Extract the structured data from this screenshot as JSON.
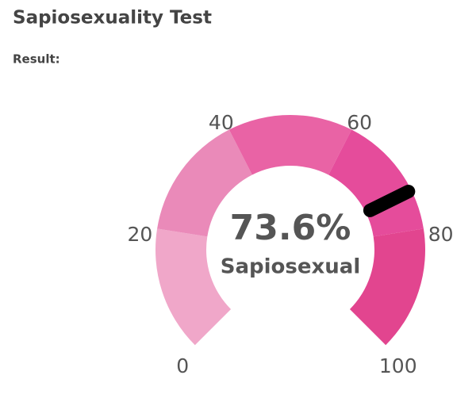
{
  "chart_data": {
    "type": "gauge",
    "title": "Sapiosexuality Test",
    "subtitle": "Result:",
    "value": 73.6,
    "value_label": "73.6%",
    "label": "Sapiosexual",
    "range": [
      0,
      100
    ],
    "ticks": [
      0,
      20,
      40,
      60,
      80,
      100
    ],
    "band_colors": [
      "#f0a7c9",
      "#ea8ab9",
      "#e963a5",
      "#e54c9b",
      "#e2458f"
    ],
    "needle_color": "#000000"
  }
}
